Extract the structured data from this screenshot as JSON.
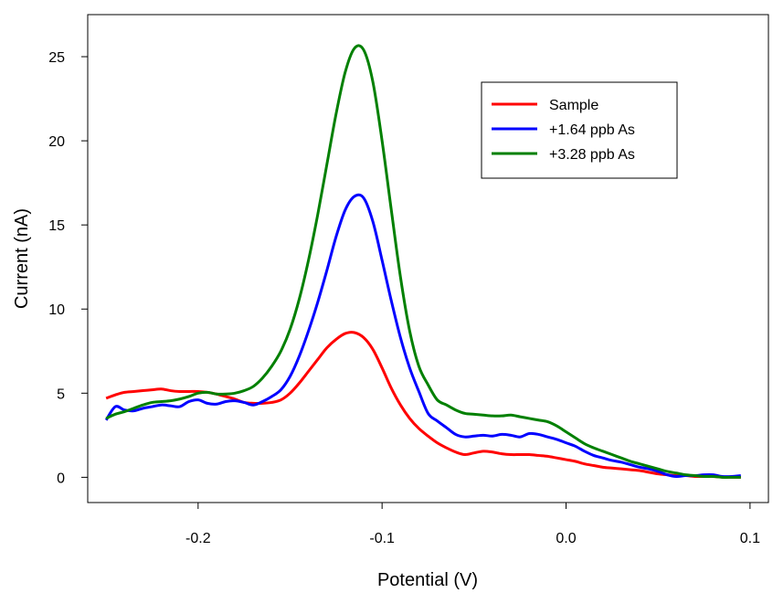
{
  "chart_data": {
    "type": "line",
    "title": "",
    "xlabel": "Potential (V)",
    "ylabel": "Current (nA)",
    "xlim": [
      -0.26,
      0.11
    ],
    "ylim": [
      -1.5,
      27.5
    ],
    "x_ticks": [
      -0.2,
      -0.1,
      0.0,
      0.1
    ],
    "x_tick_labels": [
      "-0.2",
      "-0.1",
      "0.0",
      "0.1"
    ],
    "y_ticks": [
      0,
      5,
      10,
      15,
      20,
      25
    ],
    "y_tick_labels": [
      "0",
      "5",
      "10",
      "15",
      "20",
      "25"
    ],
    "grid": false,
    "legend_position": "top-right",
    "series": [
      {
        "name": "Sample",
        "color": "#ff0000",
        "x": [
          -0.25,
          -0.245,
          -0.24,
          -0.235,
          -0.23,
          -0.225,
          -0.22,
          -0.215,
          -0.21,
          -0.205,
          -0.2,
          -0.195,
          -0.19,
          -0.185,
          -0.18,
          -0.175,
          -0.17,
          -0.165,
          -0.16,
          -0.155,
          -0.15,
          -0.145,
          -0.14,
          -0.135,
          -0.13,
          -0.125,
          -0.12,
          -0.115,
          -0.11,
          -0.105,
          -0.1,
          -0.095,
          -0.09,
          -0.085,
          -0.08,
          -0.075,
          -0.07,
          -0.065,
          -0.06,
          -0.055,
          -0.05,
          -0.045,
          -0.04,
          -0.035,
          -0.03,
          -0.025,
          -0.02,
          -0.015,
          -0.01,
          -0.005,
          0.0,
          0.005,
          0.01,
          0.015,
          0.02,
          0.025,
          0.03,
          0.035,
          0.04,
          0.045,
          0.05,
          0.055,
          0.06,
          0.065,
          0.07,
          0.075,
          0.08,
          0.085,
          0.09,
          0.095
        ],
        "y": [
          4.7,
          4.9,
          5.05,
          5.1,
          5.15,
          5.2,
          5.25,
          5.15,
          5.1,
          5.1,
          5.1,
          5.05,
          4.95,
          4.8,
          4.65,
          4.45,
          4.4,
          4.4,
          4.45,
          4.6,
          5.0,
          5.6,
          6.3,
          7.0,
          7.7,
          8.2,
          8.55,
          8.6,
          8.3,
          7.6,
          6.5,
          5.3,
          4.3,
          3.5,
          2.9,
          2.45,
          2.05,
          1.75,
          1.5,
          1.35,
          1.45,
          1.55,
          1.5,
          1.4,
          1.35,
          1.35,
          1.35,
          1.3,
          1.25,
          1.15,
          1.05,
          0.95,
          0.8,
          0.7,
          0.6,
          0.55,
          0.5,
          0.45,
          0.4,
          0.3,
          0.2,
          0.15,
          0.1,
          0.1,
          0.05,
          0.05,
          0.05,
          0.0,
          0.0,
          0.0
        ]
      },
      {
        "name": "+1.64 ppb As",
        "color": "#0000ff",
        "x": [
          -0.25,
          -0.245,
          -0.24,
          -0.235,
          -0.23,
          -0.225,
          -0.22,
          -0.215,
          -0.21,
          -0.205,
          -0.2,
          -0.195,
          -0.19,
          -0.185,
          -0.18,
          -0.175,
          -0.17,
          -0.165,
          -0.16,
          -0.155,
          -0.15,
          -0.145,
          -0.14,
          -0.135,
          -0.13,
          -0.125,
          -0.12,
          -0.115,
          -0.11,
          -0.105,
          -0.1,
          -0.095,
          -0.09,
          -0.085,
          -0.08,
          -0.075,
          -0.07,
          -0.065,
          -0.06,
          -0.055,
          -0.05,
          -0.045,
          -0.04,
          -0.035,
          -0.03,
          -0.025,
          -0.02,
          -0.015,
          -0.01,
          -0.005,
          0.0,
          0.005,
          0.01,
          0.015,
          0.02,
          0.025,
          0.03,
          0.035,
          0.04,
          0.045,
          0.05,
          0.055,
          0.06,
          0.065,
          0.07,
          0.075,
          0.08,
          0.085,
          0.09,
          0.095
        ],
        "y": [
          3.4,
          4.2,
          4.0,
          3.95,
          4.1,
          4.2,
          4.3,
          4.25,
          4.2,
          4.5,
          4.6,
          4.4,
          4.35,
          4.5,
          4.55,
          4.45,
          4.3,
          4.5,
          4.8,
          5.2,
          6.0,
          7.2,
          8.7,
          10.4,
          12.3,
          14.3,
          15.9,
          16.7,
          16.6,
          15.2,
          12.9,
          10.5,
          8.3,
          6.5,
          5.1,
          3.8,
          3.35,
          2.95,
          2.55,
          2.4,
          2.45,
          2.5,
          2.45,
          2.55,
          2.5,
          2.4,
          2.6,
          2.55,
          2.4,
          2.25,
          2.05,
          1.85,
          1.55,
          1.3,
          1.15,
          1.0,
          0.9,
          0.75,
          0.6,
          0.5,
          0.35,
          0.15,
          0.05,
          0.1,
          0.1,
          0.15,
          0.15,
          0.05,
          0.05,
          0.1
        ]
      },
      {
        "name": "+3.28 ppb As",
        "color": "#008000",
        "x": [
          -0.25,
          -0.245,
          -0.24,
          -0.235,
          -0.23,
          -0.225,
          -0.22,
          -0.215,
          -0.21,
          -0.205,
          -0.2,
          -0.195,
          -0.19,
          -0.185,
          -0.18,
          -0.175,
          -0.17,
          -0.165,
          -0.16,
          -0.155,
          -0.15,
          -0.145,
          -0.14,
          -0.135,
          -0.13,
          -0.125,
          -0.12,
          -0.115,
          -0.11,
          -0.105,
          -0.1,
          -0.095,
          -0.09,
          -0.085,
          -0.08,
          -0.075,
          -0.07,
          -0.065,
          -0.06,
          -0.055,
          -0.05,
          -0.045,
          -0.04,
          -0.035,
          -0.03,
          -0.025,
          -0.02,
          -0.015,
          -0.01,
          -0.005,
          0.0,
          0.005,
          0.01,
          0.015,
          0.02,
          0.025,
          0.03,
          0.035,
          0.04,
          0.045,
          0.05,
          0.055,
          0.06,
          0.065,
          0.07,
          0.075,
          0.08,
          0.085,
          0.09,
          0.095
        ],
        "y": [
          3.5,
          3.75,
          3.9,
          4.1,
          4.3,
          4.45,
          4.5,
          4.55,
          4.65,
          4.8,
          5.0,
          5.05,
          4.95,
          4.95,
          5.0,
          5.15,
          5.4,
          5.9,
          6.6,
          7.5,
          8.8,
          10.6,
          12.9,
          15.6,
          18.6,
          21.6,
          24.1,
          25.5,
          25.4,
          23.5,
          20.0,
          15.9,
          11.9,
          8.7,
          6.6,
          5.5,
          4.6,
          4.3,
          4.0,
          3.8,
          3.75,
          3.7,
          3.65,
          3.65,
          3.7,
          3.6,
          3.5,
          3.4,
          3.3,
          3.05,
          2.7,
          2.35,
          2.0,
          1.75,
          1.55,
          1.35,
          1.15,
          0.95,
          0.8,
          0.65,
          0.5,
          0.35,
          0.25,
          0.15,
          0.1,
          0.05,
          0.05,
          0.0,
          0.0,
          0.0
        ]
      }
    ]
  }
}
